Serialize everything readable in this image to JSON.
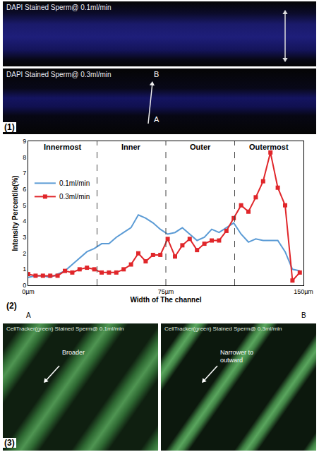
{
  "panels": {
    "panel1": {
      "label": "(1)",
      "images": [
        {
          "title": "DAPI Stained Sperm@ 0.1ml/min"
        },
        {
          "title": "DAPI Stained Sperm@ 0.3ml/min",
          "marks": [
            "B",
            "A"
          ]
        }
      ]
    },
    "panel3": {
      "label": "(3)",
      "images": [
        {
          "title": "CellTracker(green) Stained Sperm@ 0.1ml/min",
          "note": "Broader"
        },
        {
          "title": "CellTracker(green) Stained Sperm@ 0.3ml/min",
          "note": "Narrower to outward"
        }
      ]
    }
  },
  "chart_data": {
    "type": "line",
    "panel_label": "(2)",
    "xlabel": "Width of The channel",
    "ylabel": "Intensity Percentile(%)",
    "x": [
      0,
      4,
      8,
      12,
      16,
      20,
      24,
      28,
      32,
      36,
      40,
      44,
      48,
      52,
      56,
      60,
      64,
      68,
      72,
      76,
      80,
      84,
      88,
      92,
      96,
      100,
      104,
      108,
      112,
      116,
      120,
      124,
      128,
      132,
      136,
      140,
      144,
      148
    ],
    "series": [
      {
        "name": "0.1ml/min",
        "color": "#5b9bd5",
        "marker": "none",
        "line_style": "solid",
        "values": [
          0.5,
          0.6,
          0.6,
          0.5,
          0.7,
          0.9,
          1.3,
          1.7,
          2.1,
          2.3,
          2.6,
          2.6,
          3.0,
          3.3,
          3.6,
          4.4,
          4.2,
          3.9,
          3.5,
          3.2,
          3.3,
          3.6,
          3.2,
          2.8,
          3.0,
          3.5,
          3.3,
          3.6,
          3.9,
          3.2,
          2.7,
          2.9,
          2.8,
          2.8,
          2.8,
          2.1,
          1.0,
          0.9
        ]
      },
      {
        "name": "0.3ml/min",
        "color": "#e0262a",
        "marker": "square",
        "line_style": "solid",
        "values": [
          0.7,
          0.6,
          0.6,
          0.6,
          0.6,
          0.9,
          0.8,
          1.0,
          1.1,
          1.0,
          0.8,
          0.8,
          0.8,
          1.0,
          1.3,
          2.0,
          1.5,
          1.9,
          1.9,
          2.9,
          1.8,
          2.5,
          2.9,
          2.2,
          2.6,
          2.8,
          2.8,
          3.4,
          4.2,
          5.0,
          4.6,
          5.5,
          6.5,
          8.3,
          6.1,
          5.0,
          0.3,
          0.8
        ]
      }
    ],
    "xlim": [
      0,
      150
    ],
    "xticks": [
      {
        "value": 0,
        "label": "0µm"
      },
      {
        "value": 75,
        "label": "75µm"
      },
      {
        "value": 150,
        "label": "150µm"
      }
    ],
    "ylim": [
      0,
      9
    ],
    "yticks": [
      0,
      1,
      2,
      3,
      4,
      5,
      6,
      7,
      8,
      9
    ],
    "regions": [
      {
        "label": "Innermost",
        "from": 0,
        "to": 37.5
      },
      {
        "label": "Inner",
        "from": 37.5,
        "to": 75
      },
      {
        "label": "Outer",
        "from": 75,
        "to": 112.5
      },
      {
        "label": "Outermost",
        "from": 112.5,
        "to": 150
      }
    ],
    "end_labels": [
      {
        "text": "A",
        "x": 0
      },
      {
        "text": "B",
        "x": 150
      }
    ],
    "legend": "upper left",
    "grid": false
  }
}
